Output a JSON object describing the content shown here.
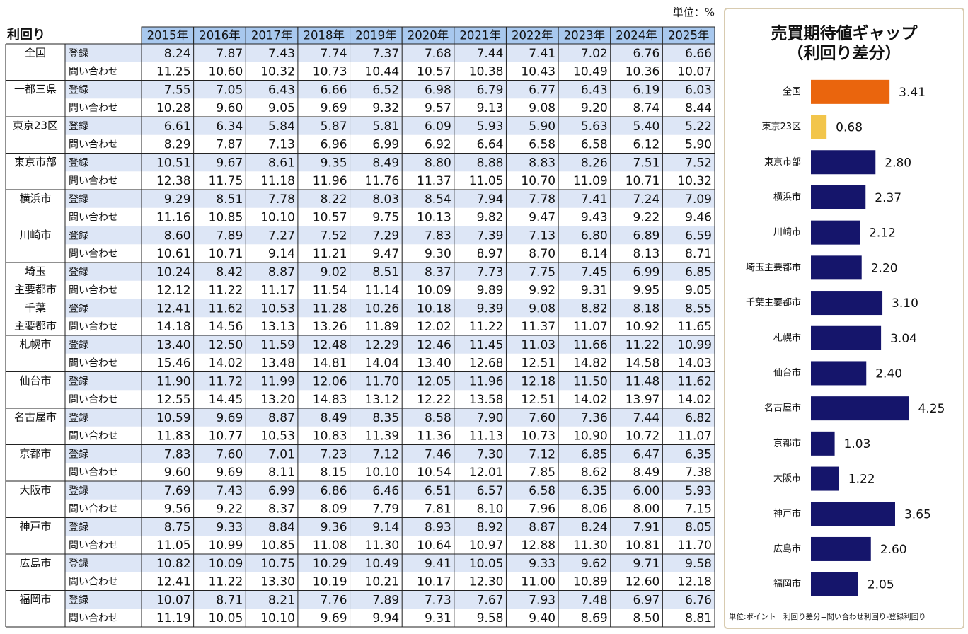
{
  "table": {
    "unit": "単位：%",
    "header": {
      "title": "利回り",
      "years": [
        "2015年",
        "2016年",
        "2017年",
        "2018年",
        "2019年",
        "2020年",
        "2021年",
        "2022年",
        "2023年",
        "2024年",
        "2025年"
      ]
    },
    "regions": [
      {
        "label": [
          "全国"
        ],
        "rows": [
          {
            "type": "登録",
            "values": [
              "8.24",
              "7.87",
              "7.43",
              "7.74",
              "7.37",
              "7.68",
              "7.44",
              "7.41",
              "7.02",
              "6.76",
              "6.66"
            ]
          },
          {
            "type": "問い合わせ",
            "values": [
              "11.25",
              "10.60",
              "10.32",
              "10.73",
              "10.44",
              "10.57",
              "10.38",
              "10.43",
              "10.49",
              "10.36",
              "10.07"
            ]
          }
        ]
      },
      {
        "label": [
          "一都三県"
        ],
        "rows": [
          {
            "type": "登録",
            "values": [
              "7.55",
              "7.05",
              "6.43",
              "6.66",
              "6.52",
              "6.98",
              "6.79",
              "6.77",
              "6.43",
              "6.19",
              "6.03"
            ]
          },
          {
            "type": "問い合わせ",
            "values": [
              "10.28",
              "9.60",
              "9.05",
              "9.69",
              "9.32",
              "9.57",
              "9.13",
              "9.08",
              "9.20",
              "8.74",
              "8.44"
            ]
          }
        ]
      },
      {
        "label": [
          "東京23区"
        ],
        "rows": [
          {
            "type": "登録",
            "values": [
              "6.61",
              "6.34",
              "5.84",
              "5.87",
              "5.81",
              "6.09",
              "5.93",
              "5.90",
              "5.63",
              "5.40",
              "5.22"
            ]
          },
          {
            "type": "問い合わせ",
            "values": [
              "8.29",
              "7.87",
              "7.13",
              "6.96",
              "6.99",
              "6.92",
              "6.64",
              "6.58",
              "6.58",
              "6.12",
              "5.90"
            ]
          }
        ]
      },
      {
        "label": [
          "東京市部"
        ],
        "rows": [
          {
            "type": "登録",
            "values": [
              "10.51",
              "9.67",
              "8.61",
              "9.35",
              "8.49",
              "8.80",
              "8.88",
              "8.83",
              "8.26",
              "7.51",
              "7.52"
            ]
          },
          {
            "type": "問い合わせ",
            "values": [
              "12.38",
              "11.75",
              "11.18",
              "11.96",
              "11.76",
              "11.37",
              "11.05",
              "10.70",
              "11.09",
              "10.71",
              "10.32"
            ]
          }
        ]
      },
      {
        "label": [
          "横浜市"
        ],
        "rows": [
          {
            "type": "登録",
            "values": [
              "9.29",
              "8.51",
              "7.78",
              "8.22",
              "8.03",
              "8.54",
              "7.94",
              "7.78",
              "7.41",
              "7.24",
              "7.09"
            ]
          },
          {
            "type": "問い合わせ",
            "values": [
              "11.16",
              "10.85",
              "10.10",
              "10.57",
              "9.75",
              "10.13",
              "9.82",
              "9.47",
              "9.43",
              "9.22",
              "9.46"
            ]
          }
        ]
      },
      {
        "label": [
          "川崎市"
        ],
        "rows": [
          {
            "type": "登録",
            "values": [
              "8.60",
              "7.89",
              "7.27",
              "7.52",
              "7.29",
              "7.83",
              "7.39",
              "7.13",
              "6.80",
              "6.89",
              "6.59"
            ]
          },
          {
            "type": "問い合わせ",
            "values": [
              "10.61",
              "10.71",
              "9.14",
              "11.21",
              "9.47",
              "9.30",
              "8.97",
              "8.70",
              "8.14",
              "8.13",
              "8.71"
            ]
          }
        ]
      },
      {
        "label": [
          "埼玉",
          "主要都市"
        ],
        "rows": [
          {
            "type": "登録",
            "values": [
              "10.24",
              "8.42",
              "8.87",
              "9.02",
              "8.51",
              "8.37",
              "7.73",
              "7.75",
              "7.45",
              "6.99",
              "6.85"
            ]
          },
          {
            "type": "問い合わせ",
            "values": [
              "12.12",
              "11.22",
              "11.17",
              "11.54",
              "11.14",
              "10.09",
              "9.89",
              "9.92",
              "9.31",
              "9.95",
              "9.05"
            ]
          }
        ]
      },
      {
        "label": [
          "千葉",
          "主要都市"
        ],
        "rows": [
          {
            "type": "登録",
            "values": [
              "12.41",
              "11.62",
              "10.53",
              "11.28",
              "10.26",
              "10.18",
              "9.39",
              "9.08",
              "8.82",
              "8.18",
              "8.55"
            ]
          },
          {
            "type": "問い合わせ",
            "values": [
              "14.18",
              "14.56",
              "13.13",
              "13.26",
              "11.89",
              "12.02",
              "11.22",
              "11.37",
              "11.07",
              "10.92",
              "11.65"
            ]
          }
        ]
      },
      {
        "label": [
          "札幌市"
        ],
        "rows": [
          {
            "type": "登録",
            "values": [
              "13.40",
              "12.50",
              "11.59",
              "12.48",
              "12.29",
              "12.46",
              "11.45",
              "11.03",
              "11.66",
              "11.22",
              "10.99"
            ]
          },
          {
            "type": "問い合わせ",
            "values": [
              "15.46",
              "14.02",
              "13.48",
              "14.81",
              "14.04",
              "13.40",
              "12.68",
              "12.51",
              "14.82",
              "14.58",
              "14.03"
            ]
          }
        ]
      },
      {
        "label": [
          "仙台市"
        ],
        "rows": [
          {
            "type": "登録",
            "values": [
              "11.90",
              "11.72",
              "11.99",
              "12.06",
              "11.70",
              "12.05",
              "11.96",
              "12.18",
              "11.50",
              "11.48",
              "11.62"
            ]
          },
          {
            "type": "問い合わせ",
            "values": [
              "12.55",
              "14.45",
              "13.20",
              "14.83",
              "13.12",
              "12.22",
              "13.58",
              "12.51",
              "14.02",
              "13.97",
              "14.02"
            ]
          }
        ]
      },
      {
        "label": [
          "名古屋市"
        ],
        "rows": [
          {
            "type": "登録",
            "values": [
              "10.59",
              "9.69",
              "8.87",
              "8.49",
              "8.35",
              "8.58",
              "7.90",
              "7.60",
              "7.36",
              "7.44",
              "6.82"
            ]
          },
          {
            "type": "問い合わせ",
            "values": [
              "11.83",
              "10.77",
              "10.53",
              "10.83",
              "11.39",
              "11.36",
              "11.13",
              "10.73",
              "10.90",
              "10.72",
              "11.07"
            ]
          }
        ]
      },
      {
        "label": [
          "京都市"
        ],
        "rows": [
          {
            "type": "登録",
            "values": [
              "7.83",
              "7.60",
              "7.01",
              "7.23",
              "7.12",
              "7.46",
              "7.30",
              "7.12",
              "6.85",
              "6.47",
              "6.35"
            ]
          },
          {
            "type": "問い合わせ",
            "values": [
              "9.60",
              "9.69",
              "8.11",
              "8.15",
              "10.10",
              "10.54",
              "12.01",
              "7.85",
              "8.62",
              "8.49",
              "7.38"
            ]
          }
        ]
      },
      {
        "label": [
          "大阪市"
        ],
        "rows": [
          {
            "type": "登録",
            "values": [
              "7.69",
              "7.43",
              "6.99",
              "6.86",
              "6.46",
              "6.51",
              "6.57",
              "6.58",
              "6.35",
              "6.00",
              "5.93"
            ]
          },
          {
            "type": "問い合わせ",
            "values": [
              "9.56",
              "9.22",
              "8.37",
              "8.09",
              "7.79",
              "7.81",
              "8.10",
              "7.96",
              "8.06",
              "8.00",
              "7.15"
            ]
          }
        ]
      },
      {
        "label": [
          "神戸市"
        ],
        "rows": [
          {
            "type": "登録",
            "values": [
              "8.75",
              "9.33",
              "8.84",
              "9.36",
              "9.14",
              "8.93",
              "8.92",
              "8.87",
              "8.24",
              "7.91",
              "8.05"
            ]
          },
          {
            "type": "問い合わせ",
            "values": [
              "11.05",
              "10.99",
              "10.85",
              "11.08",
              "11.30",
              "10.64",
              "10.97",
              "12.88",
              "11.30",
              "10.81",
              "11.70"
            ]
          }
        ]
      },
      {
        "label": [
          "広島市"
        ],
        "rows": [
          {
            "type": "登録",
            "values": [
              "10.82",
              "10.09",
              "10.75",
              "10.29",
              "10.49",
              "9.41",
              "10.05",
              "9.33",
              "9.62",
              "9.71",
              "9.58"
            ]
          },
          {
            "type": "問い合わせ",
            "values": [
              "12.41",
              "11.22",
              "13.30",
              "10.19",
              "10.21",
              "10.17",
              "12.30",
              "11.00",
              "10.89",
              "12.60",
              "12.18"
            ]
          }
        ]
      },
      {
        "label": [
          "福岡市"
        ],
        "rows": [
          {
            "type": "登録",
            "values": [
              "10.07",
              "8.71",
              "8.21",
              "7.76",
              "7.89",
              "7.73",
              "7.67",
              "7.93",
              "7.48",
              "6.97",
              "6.76"
            ]
          },
          {
            "type": "問い合わせ",
            "values": [
              "11.19",
              "10.05",
              "10.10",
              "9.69",
              "9.94",
              "9.31",
              "9.58",
              "9.40",
              "8.69",
              "8.50",
              "8.81"
            ]
          }
        ]
      }
    ]
  },
  "chart_data": {
    "type": "bar",
    "orientation": "horizontal",
    "title": [
      "売買期待値ギャップ",
      "（利回り差分）"
    ],
    "categories": [
      "全国",
      "東京23区",
      "東京市部",
      "横浜市",
      "川崎市",
      "埼玉主要都市",
      "千葉主要都市",
      "札幌市",
      "仙台市",
      "名古屋市",
      "京都市",
      "大阪市",
      "神戸市",
      "広島市",
      "福岡市"
    ],
    "values": [
      3.41,
      0.68,
      2.8,
      2.37,
      2.12,
      2.2,
      3.1,
      3.04,
      2.4,
      4.25,
      1.03,
      1.22,
      3.65,
      2.6,
      2.05
    ],
    "value_labels": [
      "3.41",
      "0.68",
      "2.80",
      "2.37",
      "2.12",
      "2.20",
      "3.10",
      "3.04",
      "2.40",
      "4.25",
      "1.03",
      "1.22",
      "3.65",
      "2.60",
      "2.05"
    ],
    "colors": [
      "#ea650d",
      "#f2c54b",
      "#15156b",
      "#15156b",
      "#15156b",
      "#15156b",
      "#15156b",
      "#15156b",
      "#15156b",
      "#15156b",
      "#15156b",
      "#15156b",
      "#15156b",
      "#15156b",
      "#15156b"
    ],
    "xlim": [
      0,
      5
    ],
    "note": "単位:ポイント　利回り差分=問い合わせ利回り-登録利回り"
  }
}
